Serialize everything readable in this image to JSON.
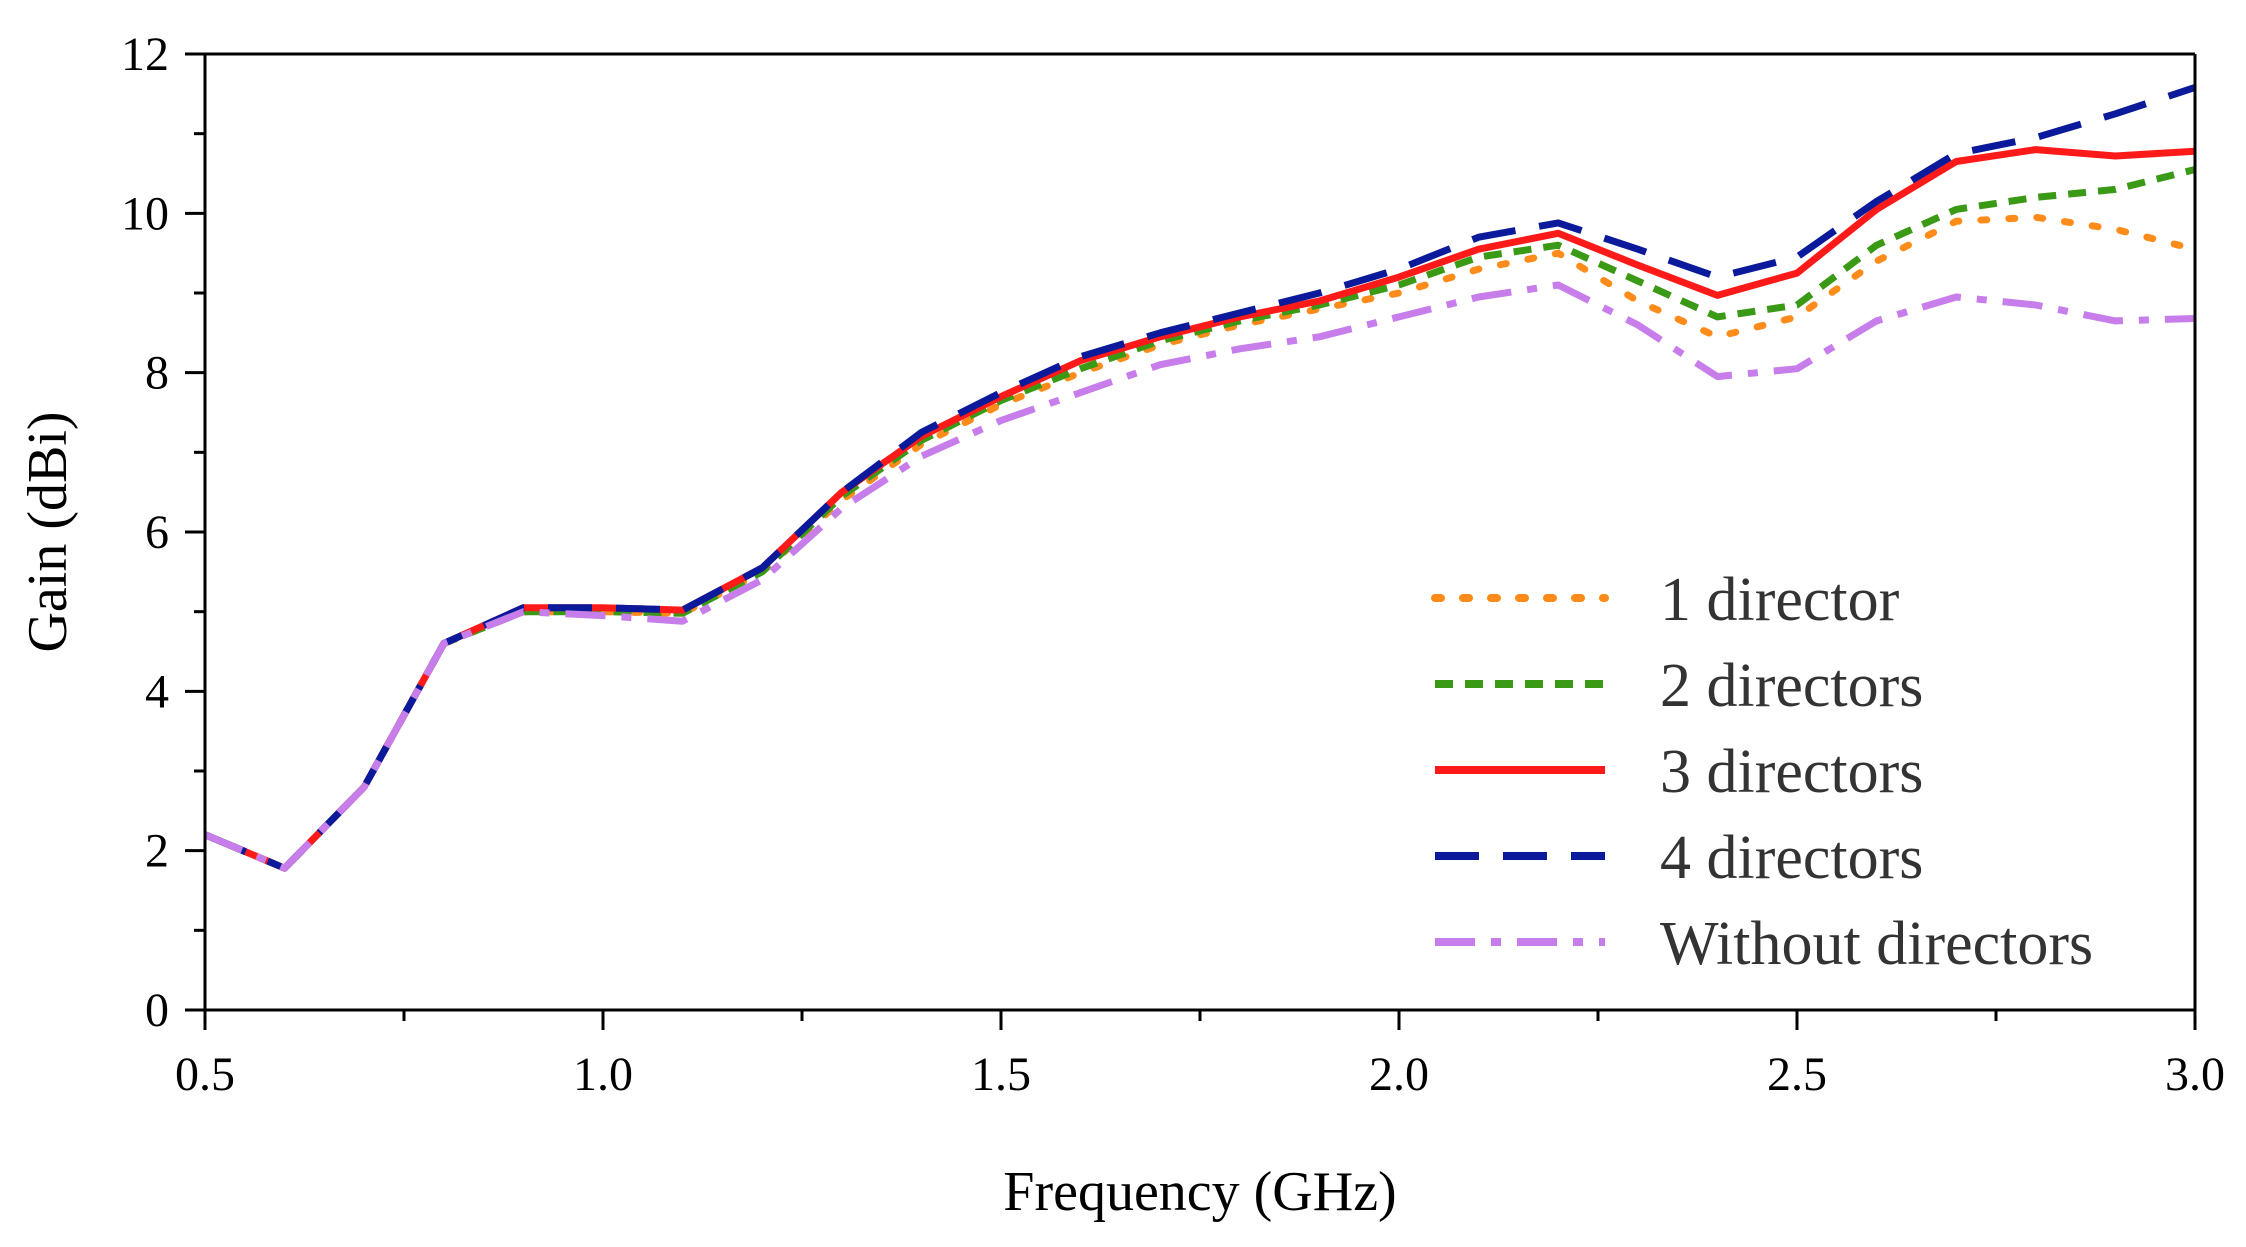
{
  "chart_data": {
    "type": "line",
    "title": "",
    "xlabel": "Frequency (GHz)",
    "ylabel": "Gain (dBi)",
    "xlim": [
      0.5,
      3.0
    ],
    "ylim": [
      0,
      12
    ],
    "x_ticks": [
      0.5,
      1.0,
      1.5,
      2.0,
      2.5,
      3.0
    ],
    "x_tick_labels": [
      "0.5",
      "1.0",
      "1.5",
      "2.0",
      "2.5",
      "3.0"
    ],
    "y_ticks": [
      0,
      2,
      4,
      6,
      8,
      10,
      12
    ],
    "y_tick_labels": [
      "0",
      "2",
      "4",
      "6",
      "8",
      "10",
      "12"
    ],
    "grid": false,
    "legend_position": "bottom-right",
    "x": [
      0.5,
      0.6,
      0.7,
      0.8,
      0.9,
      1.0,
      1.1,
      1.2,
      1.3,
      1.4,
      1.5,
      1.6,
      1.7,
      1.8,
      1.9,
      2.0,
      2.1,
      2.2,
      2.3,
      2.4,
      2.5,
      2.6,
      2.7,
      2.8,
      2.9,
      3.0
    ],
    "series": [
      {
        "name": "1 director",
        "color": "#ff8c1a",
        "style": "dotted",
        "values": [
          2.2,
          1.78,
          2.8,
          4.6,
          5.0,
          5.0,
          4.98,
          5.5,
          6.4,
          7.1,
          7.6,
          8.0,
          8.35,
          8.6,
          8.8,
          9.0,
          9.3,
          9.5,
          8.9,
          8.45,
          8.7,
          9.4,
          9.9,
          9.95,
          9.8,
          9.55
        ]
      },
      {
        "name": "2 directors",
        "color": "#3a9a16",
        "style": "dashed",
        "values": [
          2.2,
          1.78,
          2.8,
          4.6,
          5.0,
          5.0,
          4.98,
          5.5,
          6.45,
          7.15,
          7.65,
          8.05,
          8.4,
          8.65,
          8.85,
          9.1,
          9.45,
          9.6,
          9.15,
          8.7,
          8.85,
          9.6,
          10.05,
          10.2,
          10.3,
          10.55
        ]
      },
      {
        "name": "3 directors",
        "color": "#ff1a1a",
        "style": "solid",
        "values": [
          2.2,
          1.78,
          2.8,
          4.6,
          5.05,
          5.05,
          5.02,
          5.55,
          6.5,
          7.2,
          7.7,
          8.15,
          8.45,
          8.7,
          8.9,
          9.2,
          9.55,
          9.75,
          9.35,
          8.97,
          9.25,
          10.05,
          10.65,
          10.8,
          10.72,
          10.78
        ]
      },
      {
        "name": "4 directors",
        "color": "#0a1a9a",
        "style": "longdash",
        "values": [
          2.2,
          1.78,
          2.8,
          4.6,
          5.05,
          5.05,
          5.02,
          5.55,
          6.5,
          7.25,
          7.75,
          8.2,
          8.5,
          8.75,
          9.0,
          9.3,
          9.7,
          9.88,
          9.55,
          9.2,
          9.45,
          10.15,
          10.75,
          10.95,
          11.25,
          11.58
        ]
      },
      {
        "name": "Without directors",
        "color": "#c77dea",
        "style": "dashdot",
        "values": [
          2.2,
          1.78,
          2.8,
          4.6,
          5.0,
          4.95,
          4.88,
          5.4,
          6.3,
          6.95,
          7.4,
          7.75,
          8.1,
          8.3,
          8.45,
          8.7,
          8.95,
          9.1,
          8.6,
          7.95,
          8.05,
          8.65,
          8.95,
          8.85,
          8.65,
          8.68
        ]
      }
    ]
  }
}
